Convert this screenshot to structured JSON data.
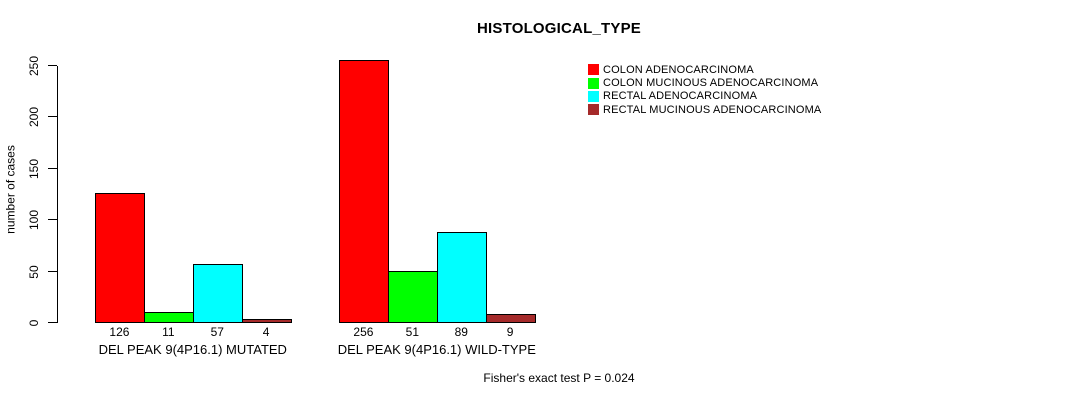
{
  "chart_data": {
    "type": "bar",
    "title": "HISTOLOGICAL_TYPE",
    "ylabel": "number of cases",
    "xlabel": "",
    "ylim": [
      0,
      250
    ],
    "yticks": [
      0,
      50,
      100,
      150,
      200,
      250
    ],
    "grid": false,
    "legend_position": "top-right",
    "categories": [
      "DEL PEAK 9(4P16.1) MUTATED",
      "DEL PEAK 9(4P16.1) WILD-TYPE"
    ],
    "series": [
      {
        "name": "COLON ADENOCARCINOMA",
        "color": "#ff0000",
        "values": [
          126,
          256
        ]
      },
      {
        "name": "COLON MUCINOUS ADENOCARCINOMA",
        "color": "#00ff00",
        "values": [
          11,
          51
        ]
      },
      {
        "name": "RECTAL ADENOCARCINOMA",
        "color": "#00ffff",
        "values": [
          57,
          89
        ]
      },
      {
        "name": "RECTAL MUCINOUS ADENOCARCINOMA",
        "color": "#a52a2a",
        "values": [
          4,
          9
        ]
      }
    ],
    "bar_value_labels": [
      [
        126,
        11,
        57,
        4
      ],
      [
        256,
        51,
        89,
        9
      ]
    ],
    "footnote": "Fisher's exact test P = 0.024",
    "bar_border_color": "#000000",
    "axis_color": "#000000"
  }
}
